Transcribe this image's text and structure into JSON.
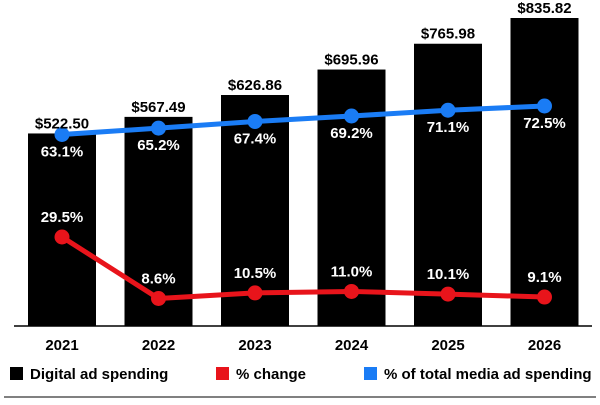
{
  "chart_data": {
    "type": "bar",
    "categories": [
      "2021",
      "2022",
      "2023",
      "2024",
      "2025",
      "2026"
    ],
    "series": [
      {
        "name": "Digital ad spending",
        "type": "bar",
        "values": [
          522.5,
          567.49,
          626.86,
          695.96,
          765.98,
          835.82
        ],
        "labels": [
          "$522.50",
          "$567.49",
          "$626.86",
          "$695.96",
          "$765.98",
          "$835.82"
        ],
        "color": "#000000"
      },
      {
        "name": "% change",
        "type": "line",
        "values": [
          29.5,
          8.6,
          10.5,
          11.0,
          10.1,
          9.1
        ],
        "labels": [
          "29.5%",
          "8.6%",
          "10.5%",
          "11.0%",
          "10.1%",
          "9.1%"
        ],
        "color": "#e8141b"
      },
      {
        "name": "% of total media ad spending",
        "type": "line",
        "values": [
          63.1,
          65.2,
          67.4,
          69.2,
          71.1,
          72.5
        ],
        "labels": [
          "63.1%",
          "65.2%",
          "67.4%",
          "69.2%",
          "71.1%",
          "72.5%"
        ],
        "color": "#1a7cf5"
      }
    ],
    "ylim": [
      0,
      835.82
    ],
    "grid": false,
    "legend_position": "bottom"
  }
}
